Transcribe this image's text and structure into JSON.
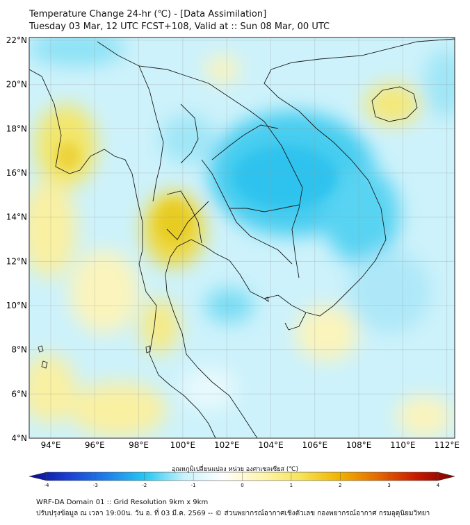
{
  "title_line1": "Temperature Change 24-hr (℃) - [Data Assimilation]",
  "title_line2": "Tuesday 03 Mar, 12 UTC FCST+108, Valid at :: Sun 08 Mar, 00 UTC",
  "lat_ticks": [
    "22°N",
    "20°N",
    "18°N",
    "16°N",
    "14°N",
    "12°N",
    "10°N",
    "8°N",
    "6°N",
    "4°N"
  ],
  "lon_ticks": [
    "94°E",
    "96°E",
    "98°E",
    "100°E",
    "102°E",
    "104°E",
    "106°E",
    "108°E",
    "110°E",
    "112°E"
  ],
  "colorbar": {
    "label": "อุณหภูมิเปลี่ยนแปลง หน่วย องศาเซลเซียส (℃)",
    "ticks": [
      "-4",
      "-3",
      "-2",
      "-1",
      "0",
      "1",
      "2",
      "3",
      "4"
    ],
    "min": -4,
    "max": 4,
    "colors": [
      "#0a0a8c",
      "#1a3fd0",
      "#1f7fe8",
      "#27c7f2",
      "#c8f2fb",
      "#ffffff",
      "#fff6b0",
      "#f7e35a",
      "#f0b400",
      "#e46a00",
      "#c81a00",
      "#7a0000"
    ]
  },
  "footer_line1": "WRF-DA Domain 01 :: Grid Resolution 9km x 9km",
  "footer_line2": "ปรับปรุงข้อมูล ณ เวลา 19:00น. วัน อ. ที่ 03 มี.ค. 2569 -- © ส่วนพยากรณ์อากาศเชิงตัวเลข กองพยากรณ์อากาศ กรมอุตุนิยมวิทยา",
  "colors": {
    "warm": "#f7ec8e",
    "cool": "#5fd6f2",
    "coast": "#1a1a1a"
  }
}
